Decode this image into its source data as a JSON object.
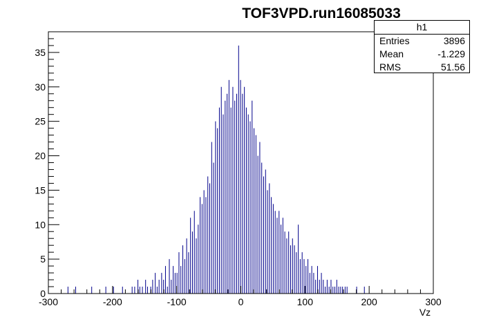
{
  "title": "TOF3VPD.run16085033",
  "stats": {
    "name": "h1",
    "rows": [
      {
        "label": "Entries",
        "value": "3896"
      },
      {
        "label": "Mean",
        "value": "-1.229"
      },
      {
        "label": "RMS",
        "value": "51.56"
      }
    ]
  },
  "chart_data": {
    "type": "bar",
    "title": "TOF3VPD.run16085033",
    "xlabel": "Vz",
    "ylabel": "",
    "xlim": [
      -300,
      300
    ],
    "ylim": [
      0,
      38
    ],
    "xticks": [
      -300,
      -200,
      -100,
      0,
      100,
      200,
      300
    ],
    "yticks": [
      0,
      5,
      10,
      15,
      20,
      25,
      30,
      35
    ],
    "grid": false,
    "series": [
      {
        "color": "#00008b",
        "bin_width": 1,
        "bins": [
          [
            -270,
            1
          ],
          [
            -258,
            1
          ],
          [
            -233,
            1
          ],
          [
            -211,
            1
          ],
          [
            -199,
            1
          ],
          [
            -185,
            1
          ],
          [
            -170,
            1
          ],
          [
            -166,
            1
          ],
          [
            -161,
            2
          ],
          [
            -158,
            1
          ],
          [
            -154,
            1
          ],
          [
            -149,
            2
          ],
          [
            -146,
            1
          ],
          [
            -141,
            1
          ],
          [
            -138,
            2
          ],
          [
            -134,
            3
          ],
          [
            -131,
            1
          ],
          [
            -128,
            2
          ],
          [
            -124,
            3
          ],
          [
            -121,
            2
          ],
          [
            -118,
            4
          ],
          [
            -115,
            1
          ],
          [
            -112,
            5
          ],
          [
            -109,
            2
          ],
          [
            -106,
            4
          ],
          [
            -103,
            3
          ],
          [
            -100,
            3
          ],
          [
            -97,
            6
          ],
          [
            -94,
            4
          ],
          [
            -91,
            7
          ],
          [
            -88,
            5
          ],
          [
            -85,
            8
          ],
          [
            -82,
            6
          ],
          [
            -79,
            11
          ],
          [
            -76,
            9
          ],
          [
            -73,
            12
          ],
          [
            -70,
            8
          ],
          [
            -67,
            10
          ],
          [
            -64,
            14
          ],
          [
            -61,
            13
          ],
          [
            -58,
            15
          ],
          [
            -55,
            14
          ],
          [
            -52,
            17
          ],
          [
            -49,
            16
          ],
          [
            -46,
            22
          ],
          [
            -43,
            19
          ],
          [
            -40,
            25
          ],
          [
            -37,
            24
          ],
          [
            -34,
            27
          ],
          [
            -31,
            30
          ],
          [
            -28,
            26
          ],
          [
            -25,
            28
          ],
          [
            -22,
            29
          ],
          [
            -19,
            31
          ],
          [
            -16,
            27
          ],
          [
            -13,
            30
          ],
          [
            -10,
            28
          ],
          [
            -7,
            29
          ],
          [
            -4,
            36
          ],
          [
            -1,
            31
          ],
          [
            2,
            29
          ],
          [
            5,
            30
          ],
          [
            8,
            27
          ],
          [
            11,
            26
          ],
          [
            14,
            25
          ],
          [
            17,
            28
          ],
          [
            20,
            24
          ],
          [
            23,
            23
          ],
          [
            26,
            20
          ],
          [
            29,
            22
          ],
          [
            32,
            19
          ],
          [
            35,
            17
          ],
          [
            38,
            18
          ],
          [
            41,
            15
          ],
          [
            44,
            16
          ],
          [
            47,
            14
          ],
          [
            50,
            13
          ],
          [
            53,
            12
          ],
          [
            56,
            11
          ],
          [
            59,
            12
          ],
          [
            62,
            10
          ],
          [
            65,
            11
          ],
          [
            68,
            9
          ],
          [
            71,
            8
          ],
          [
            74,
            9
          ],
          [
            77,
            7
          ],
          [
            80,
            8
          ],
          [
            83,
            7
          ],
          [
            86,
            6
          ],
          [
            89,
            10
          ],
          [
            92,
            5
          ],
          [
            95,
            6
          ],
          [
            98,
            5
          ],
          [
            101,
            4
          ],
          [
            104,
            5
          ],
          [
            107,
            3
          ],
          [
            110,
            4
          ],
          [
            113,
            3
          ],
          [
            116,
            2
          ],
          [
            119,
            4
          ],
          [
            122,
            2
          ],
          [
            125,
            3
          ],
          [
            128,
            2
          ],
          [
            131,
            1
          ],
          [
            134,
            2
          ],
          [
            137,
            1
          ],
          [
            140,
            2
          ],
          [
            143,
            1
          ],
          [
            146,
            1
          ],
          [
            149,
            2
          ],
          [
            152,
            1
          ],
          [
            155,
            1
          ],
          [
            158,
            1
          ],
          [
            162,
            1
          ],
          [
            165,
            1
          ],
          [
            180,
            1
          ],
          [
            192,
            1
          ]
        ]
      }
    ]
  }
}
